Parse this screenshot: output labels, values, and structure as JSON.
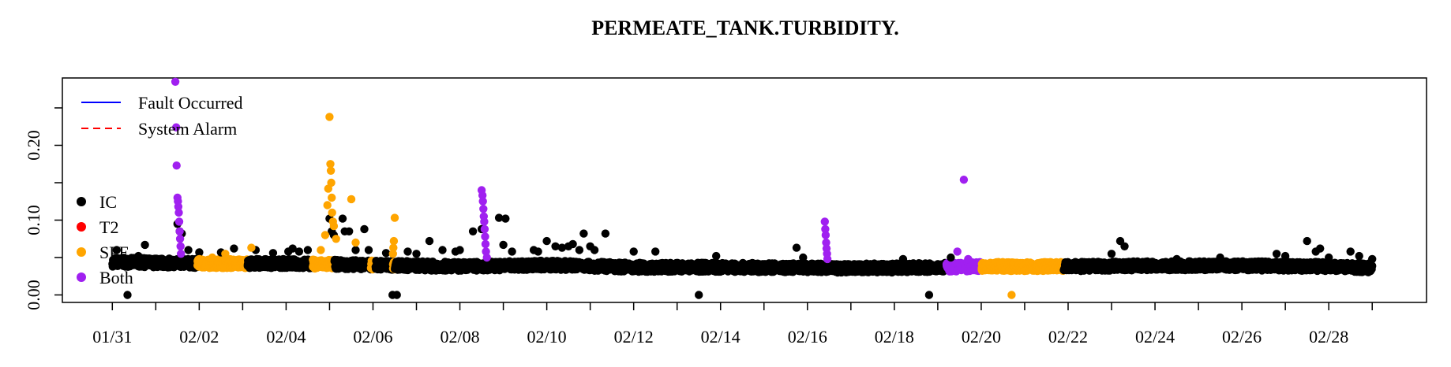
{
  "chart_data": {
    "type": "scatter",
    "title": "PERMEATE_TANK.TURBIDITY.",
    "xlabel": "",
    "ylabel": "",
    "x_tick_labels": [
      "01/31",
      "02/02",
      "02/04",
      "02/06",
      "02/08",
      "02/10",
      "02/12",
      "02/14",
      "02/16",
      "02/18",
      "02/20",
      "02/22",
      "02/24",
      "02/26",
      "02/28"
    ],
    "x_tick_days": [
      0,
      2,
      4,
      6,
      8,
      10,
      12,
      14,
      16,
      18,
      20,
      22,
      24,
      26,
      28
    ],
    "xlim_days": [
      -1.15,
      30.25
    ],
    "y_ticks": [
      0.0,
      0.1,
      0.2
    ],
    "y_tick_labels": [
      "0.00",
      "0.10",
      "0.20"
    ],
    "ylim": [
      -0.01,
      0.29
    ],
    "colors": {
      "IC": "#000000",
      "T2": "#ff0000",
      "SPE": "#ffa500",
      "Both": "#a020f0",
      "fault": "#0000ff",
      "alarm": "#ff0000"
    },
    "line_legend": [
      {
        "label": "Fault Occurred",
        "style": "solid",
        "color": "#0000ff"
      },
      {
        "label": "System Alarm",
        "style": "dashed",
        "color": "#ff0000"
      }
    ],
    "point_legend": [
      {
        "label": "IC",
        "color": "#000000"
      },
      {
        "label": "T2",
        "color": "#ff0000"
      },
      {
        "label": "SPE",
        "color": "#ffa500"
      },
      {
        "label": "Both",
        "color": "#a020f0"
      }
    ],
    "baseline": [
      {
        "day": 0.0,
        "value": 0.044
      },
      {
        "day": 2.0,
        "value": 0.042
      },
      {
        "day": 4.0,
        "value": 0.042
      },
      {
        "day": 6.0,
        "value": 0.04
      },
      {
        "day": 8.0,
        "value": 0.038
      },
      {
        "day": 10.0,
        "value": 0.04
      },
      {
        "day": 12.0,
        "value": 0.037
      },
      {
        "day": 14.0,
        "value": 0.037
      },
      {
        "day": 16.0,
        "value": 0.036
      },
      {
        "day": 18.0,
        "value": 0.036
      },
      {
        "day": 20.0,
        "value": 0.038
      },
      {
        "day": 22.0,
        "value": 0.038
      },
      {
        "day": 24.0,
        "value": 0.039
      },
      {
        "day": 26.0,
        "value": 0.039
      },
      {
        "day": 28.0,
        "value": 0.038
      },
      {
        "day": 29.0,
        "value": 0.036
      }
    ],
    "spe_ranges": [
      {
        "start": 1.95,
        "end": 3.1
      },
      {
        "start": 4.6,
        "end": 5.1
      },
      {
        "start": 5.95,
        "end": 6.05
      },
      {
        "start": 6.45,
        "end": 6.5
      },
      {
        "start": 19.8,
        "end": 21.9
      }
    ],
    "both_ranges": [
      {
        "start": 19.2,
        "end": 20.0
      }
    ],
    "series": [
      {
        "name": "IC",
        "points": [
          {
            "day": 0.1,
            "value": 0.06
          },
          {
            "day": 0.35,
            "value": 0.0
          },
          {
            "day": 0.6,
            "value": 0.052
          },
          {
            "day": 0.75,
            "value": 0.067
          },
          {
            "day": 1.5,
            "value": 0.095
          },
          {
            "day": 1.55,
            "value": 0.085
          },
          {
            "day": 1.6,
            "value": 0.082
          },
          {
            "day": 1.75,
            "value": 0.06
          },
          {
            "day": 2.0,
            "value": 0.057
          },
          {
            "day": 2.5,
            "value": 0.057
          },
          {
            "day": 2.8,
            "value": 0.062
          },
          {
            "day": 3.3,
            "value": 0.06
          },
          {
            "day": 3.7,
            "value": 0.056
          },
          {
            "day": 4.05,
            "value": 0.058
          },
          {
            "day": 4.15,
            "value": 0.062
          },
          {
            "day": 4.3,
            "value": 0.058
          },
          {
            "day": 4.5,
            "value": 0.06
          },
          {
            "day": 5.0,
            "value": 0.102
          },
          {
            "day": 5.05,
            "value": 0.085
          },
          {
            "day": 5.1,
            "value": 0.08
          },
          {
            "day": 5.3,
            "value": 0.102
          },
          {
            "day": 5.35,
            "value": 0.085
          },
          {
            "day": 5.45,
            "value": 0.085
          },
          {
            "day": 5.6,
            "value": 0.06
          },
          {
            "day": 5.8,
            "value": 0.088
          },
          {
            "day": 5.9,
            "value": 0.06
          },
          {
            "day": 6.3,
            "value": 0.056
          },
          {
            "day": 6.45,
            "value": 0.0
          },
          {
            "day": 6.55,
            "value": 0.0
          },
          {
            "day": 6.8,
            "value": 0.058
          },
          {
            "day": 7.0,
            "value": 0.055
          },
          {
            "day": 7.3,
            "value": 0.072
          },
          {
            "day": 7.6,
            "value": 0.06
          },
          {
            "day": 7.9,
            "value": 0.058
          },
          {
            "day": 8.0,
            "value": 0.06
          },
          {
            "day": 8.3,
            "value": 0.085
          },
          {
            "day": 8.5,
            "value": 0.088
          },
          {
            "day": 8.9,
            "value": 0.103
          },
          {
            "day": 9.0,
            "value": 0.067
          },
          {
            "day": 9.05,
            "value": 0.102
          },
          {
            "day": 9.2,
            "value": 0.058
          },
          {
            "day": 9.7,
            "value": 0.06
          },
          {
            "day": 9.8,
            "value": 0.058
          },
          {
            "day": 10.0,
            "value": 0.072
          },
          {
            "day": 10.2,
            "value": 0.065
          },
          {
            "day": 10.35,
            "value": 0.063
          },
          {
            "day": 10.5,
            "value": 0.065
          },
          {
            "day": 10.6,
            "value": 0.068
          },
          {
            "day": 10.75,
            "value": 0.06
          },
          {
            "day": 10.85,
            "value": 0.082
          },
          {
            "day": 11.0,
            "value": 0.065
          },
          {
            "day": 11.1,
            "value": 0.06
          },
          {
            "day": 11.35,
            "value": 0.082
          },
          {
            "day": 12.0,
            "value": 0.058
          },
          {
            "day": 12.5,
            "value": 0.058
          },
          {
            "day": 13.5,
            "value": 0.0
          },
          {
            "day": 13.9,
            "value": 0.052
          },
          {
            "day": 15.75,
            "value": 0.063
          },
          {
            "day": 15.9,
            "value": 0.05
          },
          {
            "day": 18.8,
            "value": 0.0
          },
          {
            "day": 18.2,
            "value": 0.048
          },
          {
            "day": 19.3,
            "value": 0.05
          },
          {
            "day": 23.0,
            "value": 0.055
          },
          {
            "day": 23.2,
            "value": 0.072
          },
          {
            "day": 23.3,
            "value": 0.065
          },
          {
            "day": 24.5,
            "value": 0.048
          },
          {
            "day": 25.5,
            "value": 0.05
          },
          {
            "day": 26.8,
            "value": 0.055
          },
          {
            "day": 27.0,
            "value": 0.052
          },
          {
            "day": 27.5,
            "value": 0.072
          },
          {
            "day": 27.7,
            "value": 0.058
          },
          {
            "day": 27.8,
            "value": 0.062
          },
          {
            "day": 28.0,
            "value": 0.05
          },
          {
            "day": 28.5,
            "value": 0.058
          },
          {
            "day": 28.7,
            "value": 0.052
          },
          {
            "day": 29.0,
            "value": 0.048
          }
        ]
      },
      {
        "name": "SPE",
        "points": [
          {
            "day": 2.0,
            "value": 0.048
          },
          {
            "day": 2.3,
            "value": 0.05
          },
          {
            "day": 2.6,
            "value": 0.055
          },
          {
            "day": 3.2,
            "value": 0.063
          },
          {
            "day": 4.8,
            "value": 0.06
          },
          {
            "day": 4.9,
            "value": 0.08
          },
          {
            "day": 4.95,
            "value": 0.12
          },
          {
            "day": 4.97,
            "value": 0.142
          },
          {
            "day": 5.0,
            "value": 0.238
          },
          {
            "day": 5.02,
            "value": 0.175
          },
          {
            "day": 5.03,
            "value": 0.166
          },
          {
            "day": 5.04,
            "value": 0.15
          },
          {
            "day": 5.05,
            "value": 0.13
          },
          {
            "day": 5.06,
            "value": 0.11
          },
          {
            "day": 5.08,
            "value": 0.098
          },
          {
            "day": 5.1,
            "value": 0.092
          },
          {
            "day": 5.15,
            "value": 0.075
          },
          {
            "day": 5.5,
            "value": 0.128
          },
          {
            "day": 5.6,
            "value": 0.07
          },
          {
            "day": 6.5,
            "value": 0.103
          },
          {
            "day": 6.48,
            "value": 0.072
          },
          {
            "day": 6.47,
            "value": 0.063
          },
          {
            "day": 6.46,
            "value": 0.055
          },
          {
            "day": 20.7,
            "value": 0.0
          }
        ]
      },
      {
        "name": "Both",
        "points": [
          {
            "day": 1.45,
            "value": 0.285
          },
          {
            "day": 1.47,
            "value": 0.224
          },
          {
            "day": 1.48,
            "value": 0.173
          },
          {
            "day": 1.5,
            "value": 0.13
          },
          {
            "day": 1.51,
            "value": 0.125
          },
          {
            "day": 1.52,
            "value": 0.118
          },
          {
            "day": 1.53,
            "value": 0.11
          },
          {
            "day": 1.54,
            "value": 0.098
          },
          {
            "day": 1.55,
            "value": 0.085
          },
          {
            "day": 1.56,
            "value": 0.075
          },
          {
            "day": 1.57,
            "value": 0.065
          },
          {
            "day": 1.58,
            "value": 0.055
          },
          {
            "day": 8.5,
            "value": 0.14
          },
          {
            "day": 8.52,
            "value": 0.133
          },
          {
            "day": 8.53,
            "value": 0.125
          },
          {
            "day": 8.54,
            "value": 0.115
          },
          {
            "day": 8.55,
            "value": 0.105
          },
          {
            "day": 8.56,
            "value": 0.098
          },
          {
            "day": 8.57,
            "value": 0.088
          },
          {
            "day": 8.58,
            "value": 0.078
          },
          {
            "day": 8.59,
            "value": 0.068
          },
          {
            "day": 8.6,
            "value": 0.058
          },
          {
            "day": 8.62,
            "value": 0.05
          },
          {
            "day": 16.4,
            "value": 0.098
          },
          {
            "day": 16.41,
            "value": 0.088
          },
          {
            "day": 16.42,
            "value": 0.08
          },
          {
            "day": 16.43,
            "value": 0.07
          },
          {
            "day": 16.44,
            "value": 0.062
          },
          {
            "day": 16.45,
            "value": 0.055
          },
          {
            "day": 16.46,
            "value": 0.048
          },
          {
            "day": 19.45,
            "value": 0.058
          },
          {
            "day": 19.6,
            "value": 0.154
          },
          {
            "day": 19.7,
            "value": 0.048
          }
        ]
      }
    ]
  }
}
